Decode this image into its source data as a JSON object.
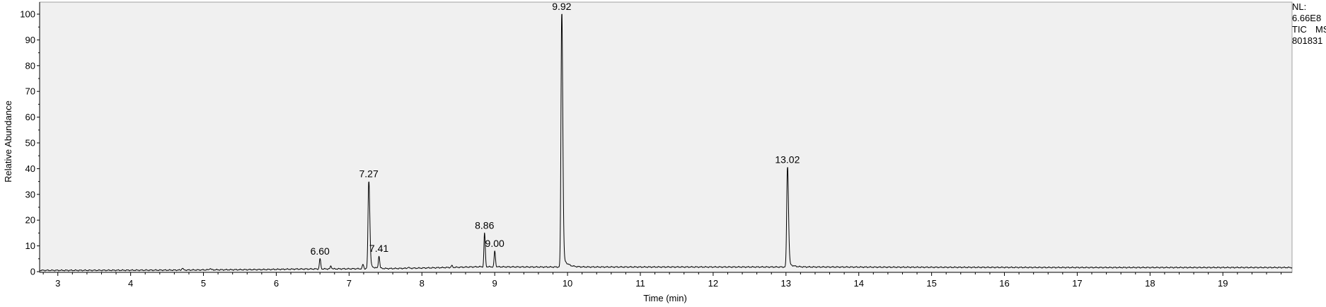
{
  "info": {
    "nl_label": "NL:",
    "nl_value": "6.66E8",
    "scan_type": "TIC",
    "scan_mode": "MS",
    "file_name": "801831"
  },
  "chart_data": {
    "type": "line",
    "title": "",
    "xlabel": "Time (min)",
    "ylabel": "Relative Abundance",
    "xlim": [
      2.75,
      19.95
    ],
    "ylim": [
      0,
      100
    ],
    "x_ticks": [
      3,
      4,
      5,
      6,
      7,
      8,
      9,
      10,
      11,
      12,
      13,
      14,
      15,
      16,
      17,
      18,
      19
    ],
    "y_ticks": [
      0,
      10,
      20,
      30,
      40,
      50,
      60,
      70,
      80,
      90,
      100
    ],
    "grid": false,
    "legend": "none",
    "plot_background": "#f0f0f0",
    "line_color": "#000000",
    "baseline": [
      [
        2.75,
        0.5
      ],
      [
        3.3,
        0.5
      ],
      [
        4.7,
        0.6
      ],
      [
        5.1,
        0.7
      ],
      [
        5.8,
        0.8
      ],
      [
        6.3,
        1.0
      ],
      [
        7.0,
        1.1
      ],
      [
        7.6,
        1.2
      ],
      [
        8.0,
        1.4
      ],
      [
        8.5,
        1.7
      ],
      [
        8.8,
        1.9
      ],
      [
        9.5,
        1.8
      ],
      [
        9.85,
        1.8
      ],
      [
        11.0,
        1.8
      ],
      [
        12.0,
        1.8
      ],
      [
        12.9,
        1.8
      ],
      [
        13.5,
        1.8
      ],
      [
        15.0,
        1.7
      ],
      [
        17.0,
        1.6
      ],
      [
        19.95,
        1.6
      ]
    ],
    "peaks": [
      {
        "rt": 4.71,
        "height": 1.4,
        "label": ""
      },
      {
        "rt": 5.09,
        "height": 1.3,
        "label": ""
      },
      {
        "rt": 6.6,
        "height": 5.0,
        "label": "6.60"
      },
      {
        "rt": 6.75,
        "height": 2.2,
        "label": ""
      },
      {
        "rt": 7.19,
        "height": 2.8,
        "label": ""
      },
      {
        "rt": 7.27,
        "height": 35.0,
        "label": "7.27"
      },
      {
        "rt": 7.41,
        "height": 6.0,
        "label": "7.41"
      },
      {
        "rt": 7.81,
        "height": 1.7,
        "label": ""
      },
      {
        "rt": 8.41,
        "height": 2.3,
        "label": ""
      },
      {
        "rt": 8.86,
        "height": 15.0,
        "label": "8.86"
      },
      {
        "rt": 9.0,
        "height": 8.0,
        "label": "9.00"
      },
      {
        "rt": 9.92,
        "height": 100.0,
        "label": "9.92"
      },
      {
        "rt": 13.02,
        "height": 40.5,
        "label": "13.02"
      }
    ]
  }
}
